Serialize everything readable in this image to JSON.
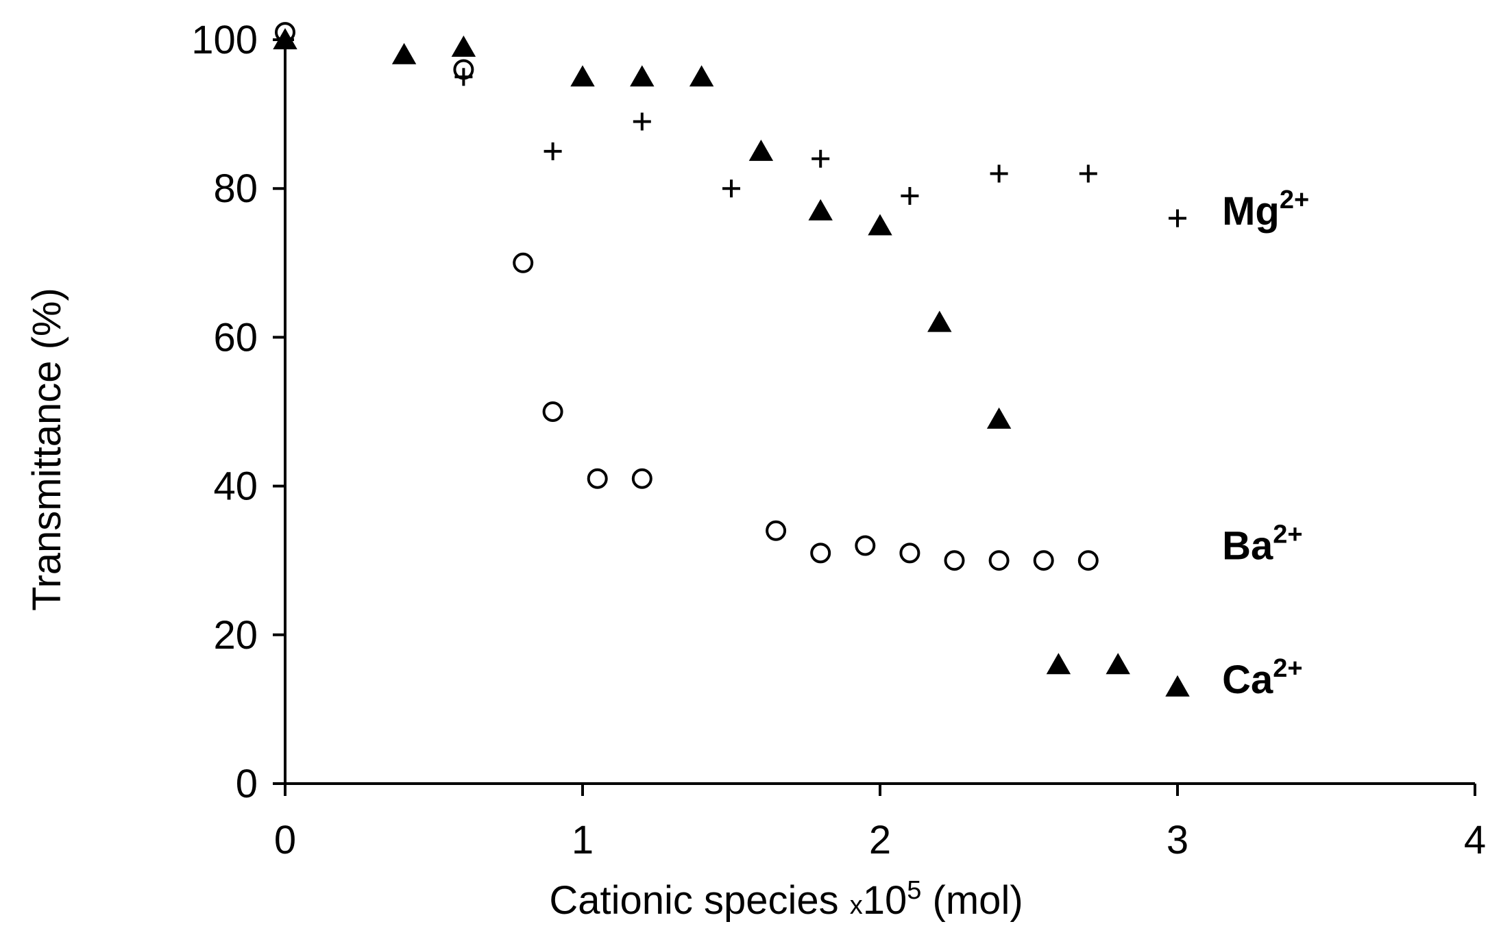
{
  "chart_data": {
    "type": "scatter",
    "title": "",
    "xlabel": {
      "prefix": "Cationic species ",
      "multiplier": "x",
      "base": "10",
      "exponent": "5",
      "suffix": " (mol)"
    },
    "ylabel": "Transmittance (%)",
    "xlim": [
      0,
      4
    ],
    "ylim": [
      0,
      100
    ],
    "xticks": [
      0,
      1,
      2,
      3,
      4
    ],
    "yticks": [
      0,
      20,
      40,
      60,
      80,
      100
    ],
    "grid": false,
    "legend": "inline labels at right",
    "series": [
      {
        "name": "Mg2+",
        "label": {
          "base": "Mg",
          "sup": "2+"
        },
        "label_anchor": [
          3.15,
          77
        ],
        "marker": "plus",
        "color": "#000000",
        "points": [
          [
            0,
            100
          ],
          [
            0.6,
            95
          ],
          [
            0.9,
            85
          ],
          [
            1.2,
            89
          ],
          [
            1.5,
            80
          ],
          [
            1.8,
            84
          ],
          [
            2.1,
            79
          ],
          [
            2.4,
            82
          ],
          [
            2.7,
            82
          ],
          [
            3.0,
            76
          ]
        ]
      },
      {
        "name": "Ba2+",
        "label": {
          "base": "Ba",
          "sup": "2+"
        },
        "label_anchor": [
          3.15,
          32
        ],
        "marker": "open-circle",
        "color": "#000000",
        "points": [
          [
            0,
            101
          ],
          [
            0.6,
            96
          ],
          [
            0.8,
            70
          ],
          [
            0.9,
            50
          ],
          [
            1.05,
            41
          ],
          [
            1.2,
            41
          ],
          [
            1.65,
            34
          ],
          [
            1.8,
            31
          ],
          [
            1.95,
            32
          ],
          [
            2.1,
            31
          ],
          [
            2.25,
            30
          ],
          [
            2.4,
            30
          ],
          [
            2.55,
            30
          ],
          [
            2.7,
            30
          ]
        ]
      },
      {
        "name": "Ca2+",
        "label": {
          "base": "Ca",
          "sup": "2+"
        },
        "label_anchor": [
          3.15,
          14
        ],
        "marker": "filled-triangle",
        "color": "#000000",
        "points": [
          [
            0,
            100
          ],
          [
            0.4,
            98
          ],
          [
            0.6,
            99
          ],
          [
            1.0,
            95
          ],
          [
            1.2,
            95
          ],
          [
            1.4,
            95
          ],
          [
            1.6,
            85
          ],
          [
            1.8,
            77
          ],
          [
            2.0,
            75
          ],
          [
            2.2,
            62
          ],
          [
            2.4,
            49
          ],
          [
            2.6,
            16
          ],
          [
            2.8,
            16
          ],
          [
            3.0,
            13
          ]
        ]
      }
    ]
  }
}
